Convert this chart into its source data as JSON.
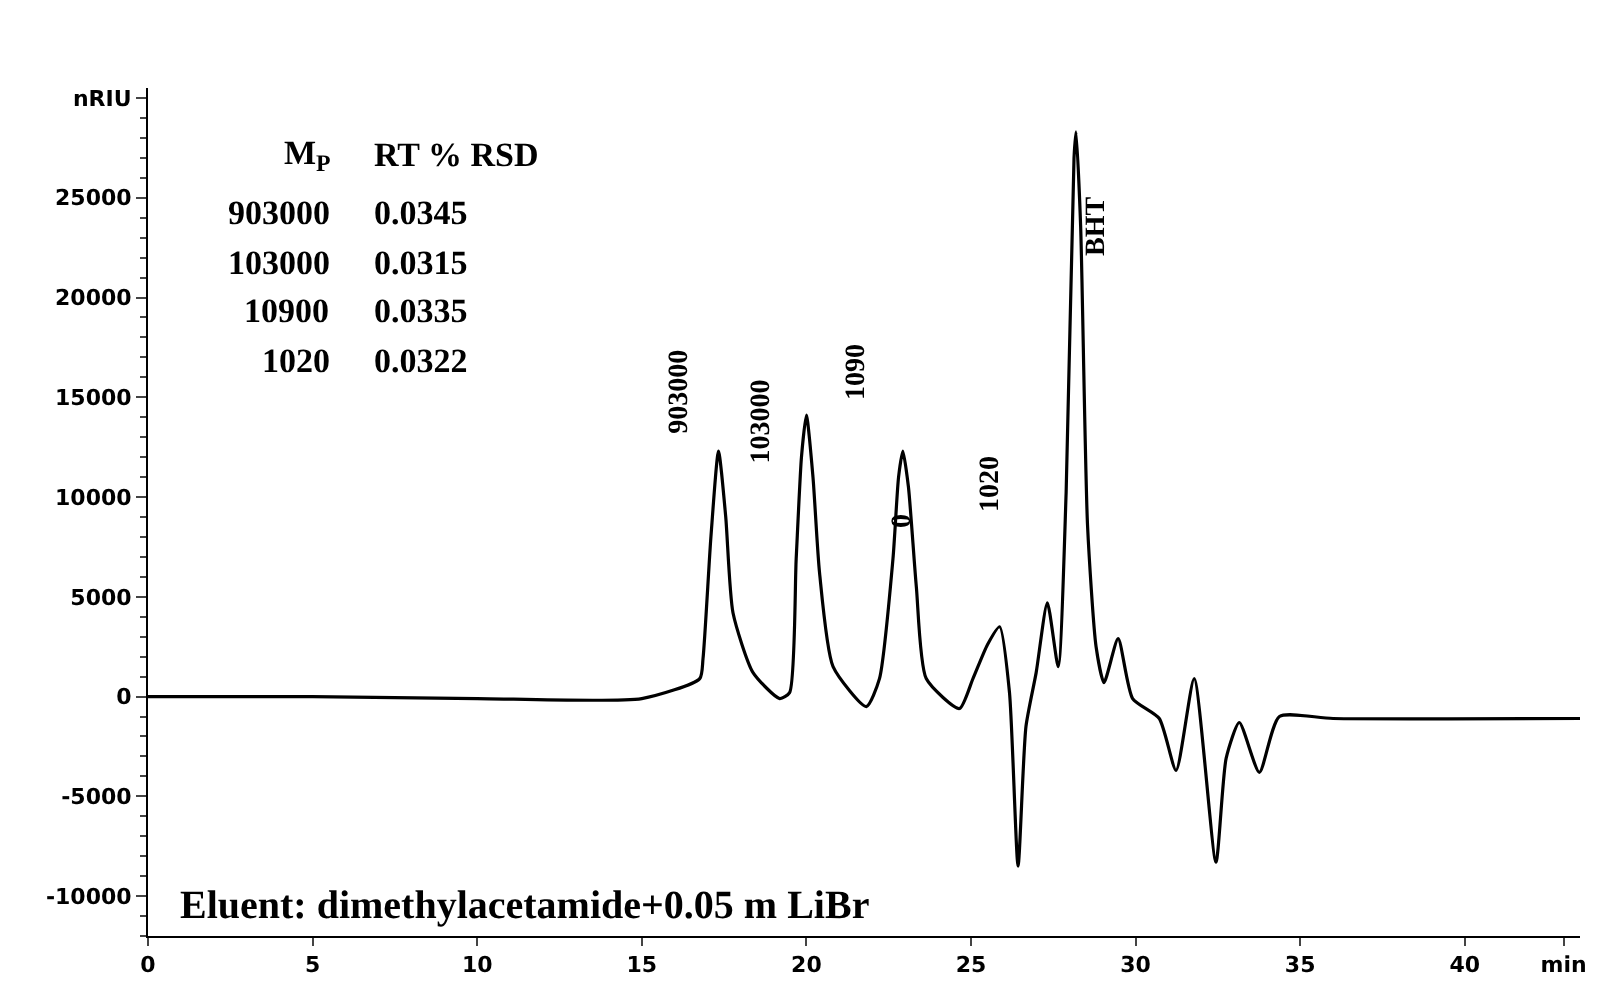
{
  "chart_data": {
    "type": "line",
    "xlim": [
      0,
      43.5
    ],
    "ylim": [
      -12000,
      30500
    ],
    "xticks": [
      0,
      5,
      10,
      15,
      20,
      25,
      30,
      35,
      40,
      {
        "value": 43,
        "label": "min"
      }
    ],
    "yticks": [
      -10000,
      -5000,
      0,
      5000,
      10000,
      15000,
      20000,
      25000,
      {
        "value": 30000,
        "label": "nRIU"
      }
    ],
    "marker": "none",
    "line_style": "solid",
    "series": [
      {
        "color": "#000000",
        "x": [
          0,
          5,
          10,
          15,
          16.76,
          16.86,
          17.1,
          17.33,
          17.55,
          17.77,
          18.38,
          19.19,
          19.49,
          19.69,
          19.85,
          20.0,
          20.2,
          20.4,
          20.81,
          21.82,
          22.22,
          22.63,
          22.8,
          22.93,
          23.1,
          23.34,
          23.64,
          24.65,
          25.06,
          25.5,
          25.87,
          26.17,
          26.43,
          26.67,
          26.98,
          27.32,
          27.65,
          27.89,
          28.13,
          28.19,
          28.33,
          28.54,
          28.8,
          29.04,
          29.47,
          29.91,
          30.72,
          31.23,
          31.78,
          32.44,
          32.75,
          33.15,
          33.76,
          34.37,
          36,
          43.5
        ],
        "values": [
          0,
          0,
          -100,
          -100,
          900,
          1900,
          8000,
          12300,
          9000,
          4200,
          1200,
          -100,
          200,
          6900,
          12000,
          14100,
          11000,
          6200,
          1500,
          -500,
          900,
          6900,
          11000,
          12300,
          10500,
          5500,
          900,
          -600,
          900,
          2600,
          3500,
          200,
          -8500,
          -1500,
          1200,
          4700,
          1500,
          10200,
          27000,
          28300,
          23600,
          8600,
          2500,
          700,
          2900,
          -100,
          -1100,
          -3700,
          900,
          -8300,
          -3100,
          -1300,
          -3800,
          -1000,
          -1100,
          -1100
        ]
      }
    ],
    "annotations": [
      "M$_{P}$",
      "RT % RSD",
      "903000",
      "0.0345",
      "103000",
      "0.0315",
      "10900",
      "0.0335",
      "1020",
      "0.0322",
      {
        "text": "903000",
        "x": 17.33,
        "y": 12300
      },
      {
        "text": "103000",
        "x": 20.0,
        "y": 14100
      },
      {
        "text": "1090",
        "x": 22.93,
        "y": 12300
      },
      {
        "text": "0",
        "x": 22.93,
        "y": 12300
      },
      "1020",
      {
        "text": "BHT",
        "x": 28.19,
        "y": 28300
      },
      "Eluent: dimethylacetamide+0.05 m LiBr"
    ]
  }
}
